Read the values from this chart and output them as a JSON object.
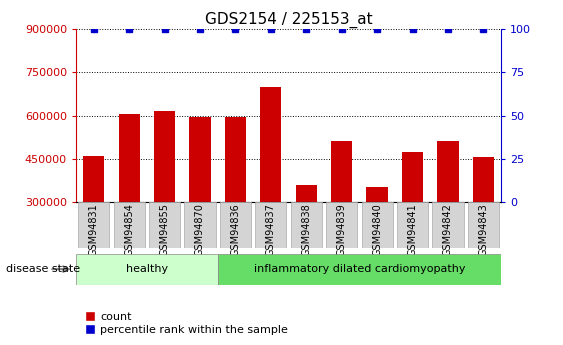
{
  "title": "GDS2154 / 225153_at",
  "categories": [
    "GSM94831",
    "GSM94854",
    "GSM94855",
    "GSM94870",
    "GSM94836",
    "GSM94837",
    "GSM94838",
    "GSM94839",
    "GSM94840",
    "GSM94841",
    "GSM94842",
    "GSM94843"
  ],
  "bar_values": [
    460000,
    605000,
    615000,
    595000,
    595000,
    700000,
    360000,
    510000,
    350000,
    475000,
    510000,
    455000
  ],
  "percentile_values": [
    100,
    100,
    100,
    100,
    100,
    100,
    100,
    100,
    100,
    100,
    100,
    100
  ],
  "bar_color": "#cc0000",
  "dot_color": "#0000cc",
  "ymin": 300000,
  "ymax": 900000,
  "yticks_left": [
    300000,
    450000,
    600000,
    750000,
    900000
  ],
  "pct_min": 0,
  "pct_max": 100,
  "yticks_right": [
    0,
    25,
    50,
    75,
    100
  ],
  "healthy_count": 4,
  "healthy_label": "healthy",
  "disease_label": "inflammatory dilated cardiomyopathy",
  "healthy_color": "#ccffcc",
  "disease_color": "#66dd66",
  "disease_state_label": "disease state",
  "legend_count_label": "count",
  "legend_percentile_label": "percentile rank within the sample",
  "tick_label_bg": "#d4d4d4",
  "bar_width": 0.6,
  "title_fontsize": 11,
  "axis_fontsize": 8,
  "label_fontsize": 7
}
